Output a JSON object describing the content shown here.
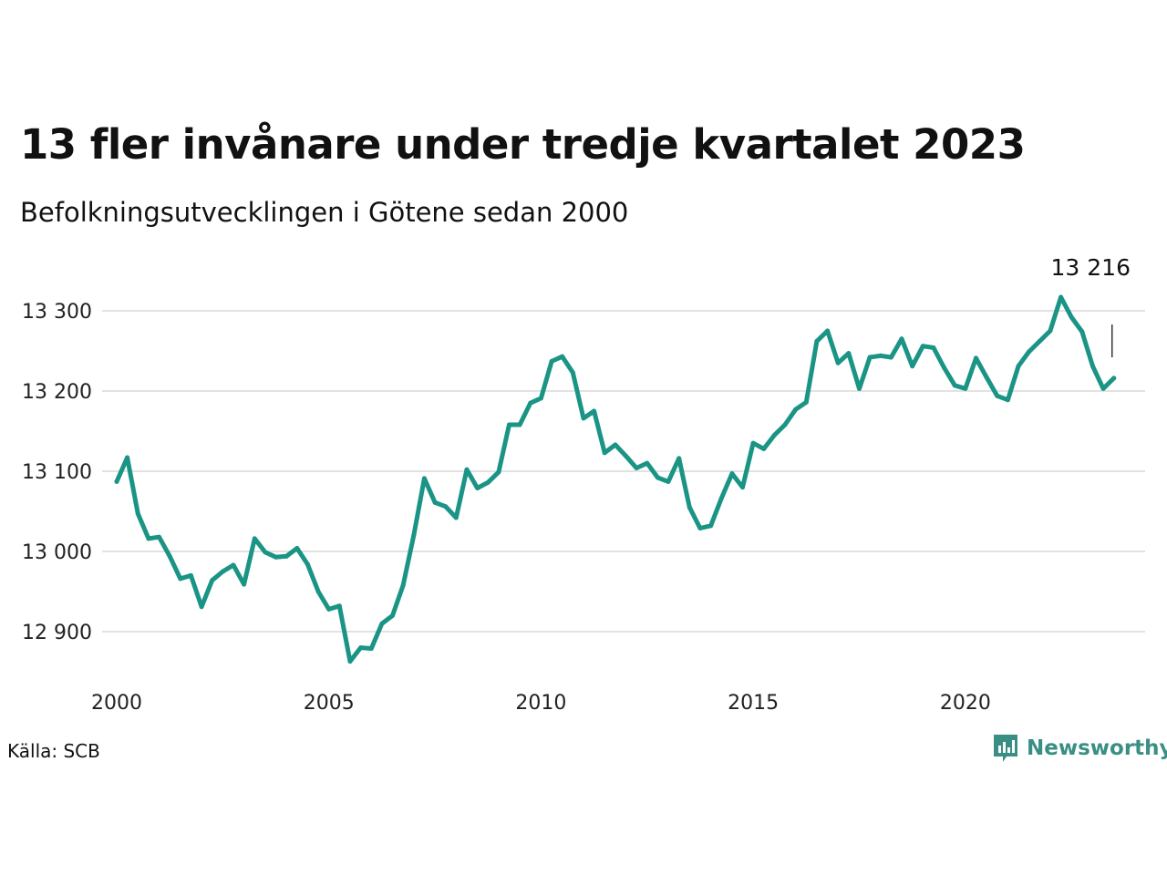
{
  "title": "13 fler invånare under tredje kvartalet 2023",
  "subtitle": "Befolkningsutvecklingen i Götene sedan 2000",
  "source": "Källa: SCB",
  "brand": "Newsworthy",
  "colors": {
    "line": "#1a9485",
    "grid": "#e2e2e2",
    "brand": "#3a8f84"
  },
  "chart_data": {
    "type": "line",
    "title": "13 fler invånare under tredje kvartalet 2023",
    "subtitle": "Befolkningsutvecklingen i Götene sedan 2000",
    "xlabel": "",
    "ylabel": "",
    "x_ticks": [
      "2000",
      "2005",
      "2010",
      "2015",
      "2020"
    ],
    "x_tick_values": [
      2000,
      2005,
      2010,
      2015,
      2020
    ],
    "y_ticks": [
      "12 900",
      "13 000",
      "13 100",
      "13 200",
      "13 300"
    ],
    "y_tick_values": [
      12900,
      13000,
      13100,
      13200,
      13300
    ],
    "ylim": [
      12840,
      13330
    ],
    "xlim": [
      2000,
      2024
    ],
    "grid": true,
    "annotation": {
      "label": "13 216",
      "x": 2023.5,
      "y": 13216
    },
    "series": [
      {
        "x": [
          2000.0,
          2000.25,
          2000.5,
          2000.75,
          2001.0,
          2001.25,
          2001.5,
          2001.75,
          2002.0,
          2002.25,
          2002.5,
          2002.75,
          2003.0,
          2003.25,
          2003.5,
          2003.75,
          2004.0,
          2004.25,
          2004.5,
          2004.75,
          2005.0,
          2005.25,
          2005.5,
          2005.75,
          2006.0,
          2006.25,
          2006.5,
          2006.75,
          2007.0,
          2007.25,
          2007.5,
          2007.75,
          2008.0,
          2008.25,
          2008.5,
          2008.75,
          2009.0,
          2009.25,
          2009.5,
          2009.75,
          2010.0,
          2010.25,
          2010.5,
          2010.75,
          2011.0,
          2011.25,
          2011.5,
          2011.75,
          2012.0,
          2012.25,
          2012.5,
          2012.75,
          2013.0,
          2013.25,
          2013.5,
          2013.75,
          2014.0,
          2014.25,
          2014.5,
          2014.75,
          2015.0,
          2015.25,
          2015.5,
          2015.75,
          2016.0,
          2016.25,
          2016.5,
          2016.75,
          2017.0,
          2017.25,
          2017.5,
          2017.75,
          2018.0,
          2018.25,
          2018.5,
          2018.75,
          2019.0,
          2019.25,
          2019.5,
          2019.75,
          2020.0,
          2020.25,
          2020.5,
          2020.75,
          2021.0,
          2021.25,
          2021.5,
          2021.75,
          2022.0,
          2022.25,
          2022.5,
          2022.75,
          2023.0,
          2023.25,
          2023.5
        ],
        "values": [
          13087,
          13117,
          13047,
          13016,
          13018,
          12994,
          12966,
          12970,
          12931,
          12964,
          12975,
          12983,
          12959,
          13016,
          12999,
          12993,
          12994,
          13004,
          12984,
          12950,
          12928,
          12932,
          12863,
          12880,
          12879,
          12910,
          12920,
          12958,
          13020,
          13091,
          13061,
          13056,
          13042,
          13102,
          13079,
          13086,
          13099,
          13158,
          13158,
          13185,
          13191,
          13237,
          13243,
          13223,
          13166,
          13175,
          13123,
          13133,
          13119,
          13104,
          13110,
          13092,
          13087,
          13116,
          13055,
          13029,
          13032,
          13066,
          13097,
          13080,
          13135,
          13128,
          13145,
          13158,
          13177,
          13186,
          13262,
          13275,
          13235,
          13247,
          13203,
          13242,
          13244,
          13242,
          13265,
          13231,
          13256,
          13254,
          13229,
          13207,
          13203,
          13241,
          13217,
          13194,
          13189,
          13231,
          13249,
          13262,
          13275,
          13317,
          13292,
          13274,
          13231,
          13203,
          13216
        ]
      }
    ]
  }
}
